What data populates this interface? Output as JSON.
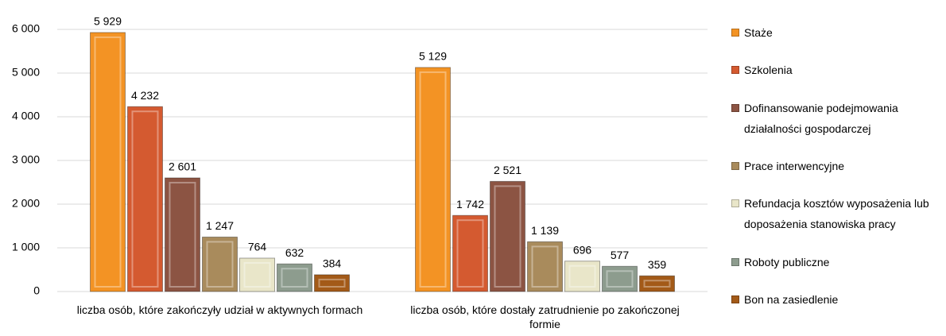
{
  "chart_data": {
    "type": "bar",
    "categories": [
      "liczba osób, które zakończyły udział w aktywnych formach",
      "liczba osób, które dostały zatrudnienie po zakończonej formie"
    ],
    "series": [
      {
        "name": "Staże",
        "color": "#f39324",
        "values": [
          5929,
          5129
        ],
        "value_labels": [
          "5 929",
          "5 129"
        ]
      },
      {
        "name": "Szkolenia",
        "color": "#d45a30",
        "values": [
          4232,
          1742
        ],
        "value_labels": [
          "4 232",
          "1 742"
        ]
      },
      {
        "name": "Dofinansowanie podejmowania działalności gospodarczej",
        "color": "#8c5443",
        "values": [
          2601,
          2521
        ],
        "value_labels": [
          "2 601",
          "2 521"
        ]
      },
      {
        "name": "Prace interwencyjne",
        "color": "#a98b5c",
        "values": [
          1247,
          1139
        ],
        "value_labels": [
          "1 247",
          "1 139"
        ]
      },
      {
        "name": "Refundacja kosztów wyposażenia lub doposażenia stanowiska pracy",
        "color": "#e9e6c9",
        "values": [
          764,
          696
        ]
      },
      {
        "name": "Roboty publiczne",
        "color": "#8d9c8e",
        "values": [
          632,
          577
        ]
      },
      {
        "name": "Bon na zasiedlenie",
        "color": "#a35a18",
        "values": [
          384,
          359
        ]
      }
    ],
    "ylim": [
      0,
      6000
    ],
    "yticks": [
      0,
      {
        "value": 1000,
        "label": "1 000"
      },
      {
        "value": 2000,
        "label": "2 000"
      },
      {
        "value": 3000,
        "label": "3 000"
      },
      {
        "value": 4000,
        "label": "4 000"
      },
      {
        "value": 5000,
        "label": "5 000"
      },
      {
        "value": 6000,
        "label": "6 000"
      }
    ],
    "grid": true,
    "legend": "right"
  }
}
